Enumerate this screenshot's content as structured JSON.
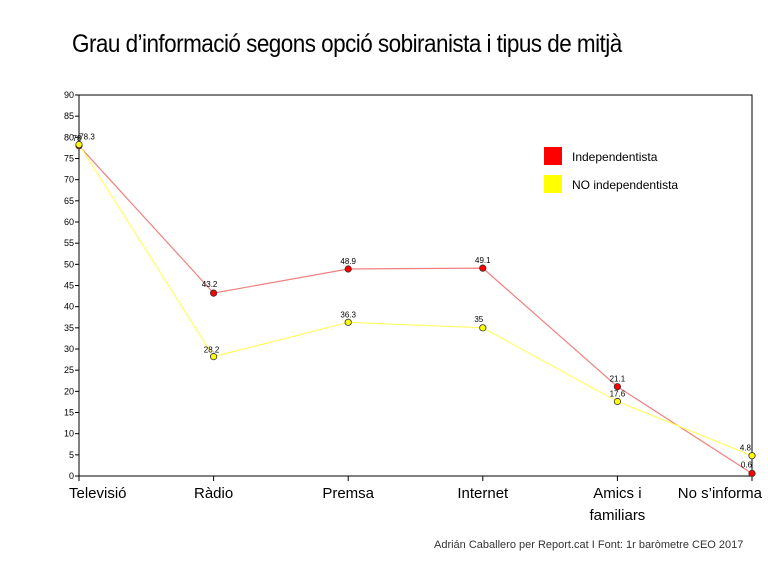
{
  "chart_data": {
    "type": "line",
    "title": "Grau d’informació segons opció sobiranista i tipus de mitjà",
    "categories": [
      "Televisió",
      "Ràdio",
      "Premsa",
      "Internet",
      "Amics i familiars",
      "No s’informa"
    ],
    "category_lines": [
      [
        "Televisió"
      ],
      [
        "Ràdio"
      ],
      [
        "Premsa"
      ],
      [
        "Internet"
      ],
      [
        "Amics i",
        "familiars"
      ],
      [
        "No s’informa"
      ]
    ],
    "series": [
      {
        "name": "Independentista",
        "color": "#ff0000",
        "line_color": "#f08080",
        "values": [
          78,
          43.2,
          48.9,
          49.1,
          21.1,
          0.6
        ],
        "labels": [
          "78",
          "43.2",
          "48.9",
          "49.1",
          "21.1",
          "0.6"
        ]
      },
      {
        "name": "NO independentista",
        "color": "#ffff00",
        "line_color": "#ffff66",
        "values": [
          78.3,
          28.2,
          36.3,
          35,
          17.6,
          4.8
        ],
        "labels": [
          "78.3",
          "28.2",
          "36.3",
          "35",
          "17.6",
          "4.8"
        ]
      }
    ],
    "ylim": [
      0,
      90
    ],
    "yticks": [
      0,
      5,
      10,
      15,
      20,
      25,
      30,
      35,
      40,
      45,
      50,
      55,
      60,
      65,
      70,
      75,
      80,
      85,
      90
    ],
    "legend_position": "top-right",
    "grid": false
  },
  "footer": {
    "source": "Adrián Caballero per Report.cat I Font: 1r baròmetre CEO 2017"
  }
}
